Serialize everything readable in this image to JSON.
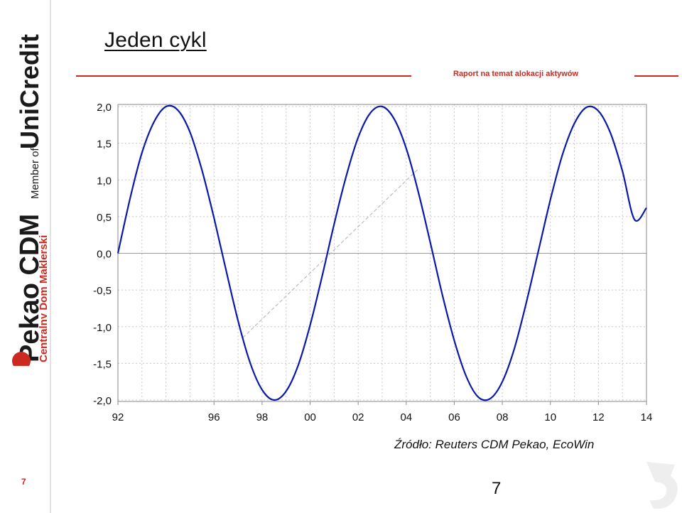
{
  "brand": {
    "partner": "UniCredit",
    "member_of": "Member of",
    "company": "Pekao CDM",
    "company_sub": "Centralny Dom Maklerski"
  },
  "slide": {
    "title": "Jeden cykl",
    "report_label": "Raport na temat alokacji aktywów",
    "source": "Źródło: Reuters CDM Pekao, EcoWin",
    "page_left": "7",
    "page_center": "7"
  },
  "colors": {
    "accent": "#cc2a20",
    "series": "#0a1aa8",
    "grid": "#c8c8c8",
    "trend": "#b0b0b0"
  },
  "chart_data": {
    "type": "line",
    "title": "",
    "xlabel": "",
    "ylabel": "",
    "x_ticks": [
      "92",
      "96",
      "98",
      "00",
      "02",
      "04",
      "06",
      "08",
      "10",
      "12",
      "14"
    ],
    "y_ticks": [
      "2,0",
      "1,5",
      "1,0",
      "0,5",
      "0,0",
      "-0,5",
      "-1,0",
      "-1,5",
      "-2,0"
    ],
    "ylim": [
      -2.0,
      2.0
    ],
    "xlim": [
      1992.0,
      2014.0
    ],
    "grid": true,
    "series": [
      {
        "x": [
          1992.0,
          1992.5,
          1993.0,
          1993.5,
          1994.0,
          1994.5,
          1995.0,
          1995.5,
          1996.0,
          1996.5,
          1997.0,
          1997.5,
          1998.0,
          1998.5,
          1999.0,
          1999.5,
          2000.0,
          2000.5,
          2001.0,
          2001.5,
          2002.0,
          2002.5,
          2003.0,
          2003.5,
          2004.0,
          2004.5,
          2005.0,
          2005.5,
          2006.0,
          2006.5,
          2007.0,
          2007.5,
          2008.0,
          2008.5,
          2009.0,
          2009.5,
          2010.0,
          2010.5,
          2011.0,
          2011.5,
          2012.0,
          2012.5,
          2013.0,
          2013.5,
          2014.0
        ],
        "values": [
          0.0,
          0.74,
          1.37,
          1.79,
          2.0,
          1.95,
          1.65,
          1.13,
          0.48,
          -0.23,
          -0.92,
          -1.49,
          -1.86,
          -2.0,
          -1.88,
          -1.53,
          -0.98,
          -0.31,
          0.4,
          1.05,
          1.58,
          1.91,
          2.0,
          1.83,
          1.43,
          0.84,
          0.15,
          -0.56,
          -1.19,
          -1.68,
          -1.96,
          -1.98,
          -1.75,
          -1.3,
          -0.67,
          0.03,
          0.73,
          1.34,
          1.77,
          1.99,
          1.94,
          1.64,
          1.12,
          0.46,
          0.62
        ]
      }
    ],
    "trend_line": {
      "x": [
        1997.2,
        2004.5
      ],
      "values": [
        -1.15,
        1.15
      ]
    }
  }
}
